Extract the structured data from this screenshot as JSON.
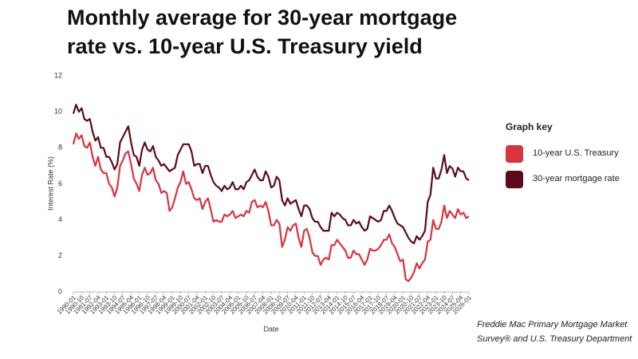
{
  "chart_data": {
    "type": "line",
    "title": "Monthly average for 30-year mortgage rate vs. 10-year U.S. Treasury yield",
    "x_label": "Date",
    "y_label": "Interest Rate (%)",
    "legend_title": "Graph key",
    "source": "Freddie Mac Primary Mortgage Market Survey® and U.S. Treasury Department",
    "x": [
      "1990-01",
      "1990-04",
      "1990-07",
      "1990-10",
      "1991-01",
      "1991-04",
      "1991-07",
      "1991-10",
      "1992-01",
      "1992-04",
      "1992-07",
      "1992-10",
      "1993-01",
      "1993-04",
      "1993-07",
      "1993-10",
      "1994-01",
      "1994-04",
      "1994-07",
      "1994-10",
      "1995-01",
      "1995-04",
      "1995-07",
      "1995-10",
      "1996-01",
      "1996-04",
      "1996-07",
      "1996-10",
      "1997-01",
      "1997-04",
      "1997-07",
      "1997-10",
      "1998-01",
      "1998-04",
      "1998-07",
      "1998-10",
      "1999-01",
      "1999-04",
      "1999-07",
      "1999-10",
      "2000-01",
      "2000-04",
      "2000-07",
      "2000-10",
      "2001-01",
      "2001-04",
      "2001-07",
      "2001-10",
      "2002-01",
      "2002-04",
      "2002-07",
      "2002-10",
      "2003-01",
      "2003-04",
      "2003-07",
      "2003-10",
      "2004-01",
      "2004-04",
      "2004-07",
      "2004-10",
      "2005-01",
      "2005-04",
      "2005-07",
      "2005-10",
      "2006-01",
      "2006-04",
      "2006-07",
      "2006-10",
      "2007-01",
      "2007-04",
      "2007-07",
      "2007-10",
      "2008-01",
      "2008-04",
      "2008-07",
      "2008-10",
      "2009-01",
      "2009-04",
      "2009-07",
      "2009-10",
      "2010-01",
      "2010-04",
      "2010-07",
      "2010-10",
      "2011-01",
      "2011-04",
      "2011-07",
      "2011-10",
      "2012-01",
      "2012-04",
      "2012-07",
      "2012-10",
      "2013-01",
      "2013-04",
      "2013-07",
      "2013-10",
      "2014-01",
      "2014-04",
      "2014-07",
      "2014-10",
      "2015-01",
      "2015-04",
      "2015-07",
      "2015-10",
      "2016-01",
      "2016-04",
      "2016-07",
      "2016-10",
      "2017-01",
      "2017-04",
      "2017-07",
      "2017-10",
      "2018-01",
      "2018-04",
      "2018-07",
      "2018-10",
      "2019-01",
      "2019-04",
      "2019-07",
      "2019-10",
      "2020-01",
      "2020-04",
      "2020-07",
      "2020-10",
      "2021-01",
      "2021-04",
      "2021-07",
      "2021-10",
      "2022-01",
      "2022-04",
      "2022-07",
      "2022-10",
      "2023-01",
      "2023-04",
      "2023-07",
      "2023-10",
      "2024-01",
      "2024-04",
      "2024-07",
      "2024-10",
      "2025-01",
      "2025-04",
      "2025-07",
      "2025-10",
      "2026-01"
    ],
    "series": [
      {
        "name": "10-year U.S. Treasury",
        "color": "#d93340",
        "values": [
          8.2,
          8.8,
          8.5,
          8.7,
          8.1,
          8.0,
          8.3,
          7.5,
          7.0,
          7.5,
          6.8,
          6.6,
          6.6,
          6.0,
          5.8,
          5.3,
          5.8,
          7.0,
          7.3,
          7.7,
          7.8,
          7.1,
          6.3,
          6.0,
          5.6,
          6.5,
          6.9,
          6.5,
          6.6,
          6.9,
          6.2,
          6.0,
          5.5,
          5.6,
          5.5,
          4.5,
          4.7,
          5.2,
          5.8,
          6.1,
          6.7,
          6.0,
          6.1,
          5.7,
          5.2,
          5.1,
          5.2,
          4.6,
          5.0,
          5.2,
          4.6,
          3.9,
          4.0,
          3.9,
          3.9,
          4.3,
          4.2,
          4.3,
          4.5,
          4.1,
          4.2,
          4.3,
          4.2,
          4.5,
          4.4,
          5.0,
          5.1,
          4.7,
          4.8,
          4.7,
          5.0,
          4.5,
          3.7,
          3.7,
          4.0,
          3.8,
          2.5,
          2.9,
          3.6,
          3.4,
          3.7,
          3.8,
          3.0,
          2.5,
          3.4,
          3.5,
          3.0,
          2.2,
          2.0,
          2.0,
          1.5,
          1.8,
          1.9,
          1.8,
          2.6,
          2.6,
          2.9,
          2.7,
          2.5,
          2.3,
          1.9,
          1.9,
          2.3,
          2.1,
          2.1,
          1.8,
          1.5,
          1.8,
          2.4,
          2.3,
          2.3,
          2.4,
          2.6,
          2.9,
          2.9,
          3.2,
          2.7,
          2.5,
          2.1,
          1.7,
          1.8,
          0.7,
          0.6,
          0.8,
          1.1,
          1.6,
          1.3,
          1.6,
          1.8,
          2.8,
          2.9,
          4.0,
          3.5,
          3.5,
          3.9,
          4.8,
          4.1,
          4.5,
          4.3,
          4.1,
          4.6,
          4.3,
          4.4,
          4.1,
          4.2
        ]
      },
      {
        "name": "30-year mortgage rate",
        "color": "#5c0a1c",
        "values": [
          9.9,
          10.4,
          10.0,
          10.2,
          9.6,
          9.5,
          9.6,
          8.9,
          8.4,
          8.6,
          8.0,
          8.0,
          7.5,
          7.5,
          7.2,
          6.8,
          7.1,
          8.3,
          8.6,
          8.9,
          9.2,
          8.3,
          7.6,
          7.5,
          7.0,
          7.9,
          8.3,
          7.9,
          7.8,
          8.1,
          7.5,
          7.3,
          7.0,
          7.1,
          6.9,
          6.7,
          6.8,
          6.9,
          7.6,
          7.9,
          8.2,
          8.2,
          8.2,
          7.8,
          7.0,
          7.1,
          7.1,
          6.6,
          7.0,
          7.0,
          6.5,
          6.1,
          5.9,
          5.8,
          5.6,
          5.9,
          5.7,
          5.8,
          6.1,
          5.7,
          5.7,
          5.9,
          5.7,
          6.1,
          6.2,
          6.5,
          6.8,
          6.4,
          6.2,
          6.2,
          6.7,
          6.4,
          5.8,
          5.9,
          6.4,
          6.2,
          5.1,
          4.8,
          5.2,
          4.9,
          5.0,
          5.1,
          4.6,
          4.2,
          4.8,
          4.8,
          4.6,
          4.1,
          3.9,
          3.9,
          3.6,
          3.4,
          3.4,
          3.4,
          4.4,
          4.2,
          4.4,
          4.3,
          4.1,
          4.0,
          3.7,
          3.7,
          4.0,
          3.8,
          3.9,
          3.6,
          3.4,
          3.5,
          4.2,
          4.1,
          4.0,
          3.9,
          4.0,
          4.5,
          4.5,
          4.8,
          4.5,
          4.1,
          3.8,
          3.7,
          3.6,
          3.3,
          3.0,
          2.8,
          2.7,
          3.1,
          2.9,
          3.1,
          3.4,
          5.0,
          5.4,
          6.9,
          6.3,
          6.3,
          6.8,
          7.6,
          6.6,
          6.99,
          6.85,
          6.4,
          6.9,
          6.7,
          6.7,
          6.3,
          6.2
        ]
      }
    ],
    "xlim": [
      "1990-01",
      "2026-01"
    ],
    "xticks": [
      "1990-01",
      "1990-10",
      "1991-07",
      "1992-04",
      "1993-01",
      "1993-10",
      "1994-07",
      "1995-04",
      "1996-01",
      "1996-10",
      "1997-07",
      "1998-04",
      "1999-01",
      "1999-10",
      "2000-07",
      "2001-04",
      "2002-01",
      "2002-10",
      "2003-07",
      "2004-04",
      "2005-01",
      "2005-10",
      "2006-07",
      "2007-04",
      "2008-01",
      "2008-10",
      "2009-07",
      "2010-04",
      "2011-01",
      "2011-10",
      "2012-07",
      "2013-04",
      "2014-01",
      "2014-10",
      "2015-07",
      "2016-04",
      "2017-01",
      "2017-10",
      "2018-07",
      "2019-04",
      "2020-01",
      "2020-10",
      "2021-07",
      "2022-04",
      "2023-01",
      "2023-10",
      "2024-07",
      "2025-04",
      "2026-01"
    ],
    "ylim": [
      0,
      12
    ],
    "yticks": [
      0,
      2,
      4,
      6,
      8,
      10,
      12
    ],
    "grid": false,
    "legend": "right"
  }
}
